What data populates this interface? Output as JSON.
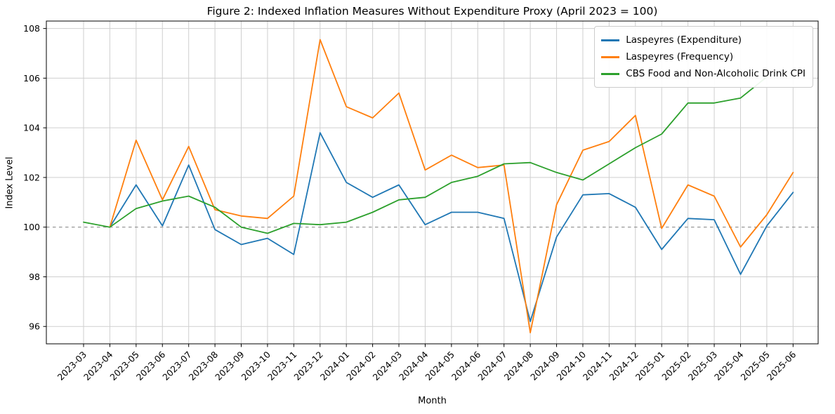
{
  "chart_data": {
    "type": "line",
    "title": "Figure 2: Indexed Inflation Measures Without Expenditure Proxy (April 2023 = 100)",
    "xlabel": "Month",
    "ylabel": "Index Level",
    "x_categories": [
      "2023-03",
      "2023-04",
      "2023-05",
      "2023-06",
      "2023-07",
      "2023-08",
      "2023-09",
      "2023-10",
      "2023-11",
      "2023-12",
      "2024-01",
      "2024-02",
      "2024-03",
      "2024-04",
      "2024-05",
      "2024-06",
      "2024-07",
      "2024-08",
      "2024-09",
      "2024-10",
      "2024-11",
      "2024-12",
      "2025-01",
      "2025-02",
      "2025-03",
      "2025-04",
      "2025-05",
      "2025-06"
    ],
    "yticks": [
      96,
      98,
      100,
      102,
      104,
      106,
      108
    ],
    "ylim": [
      95.3,
      108.3
    ],
    "grid": true,
    "legend_position": "upper right",
    "reference_line": {
      "y": 100,
      "style": "dashed",
      "color": "#8c8c8c"
    },
    "series": [
      {
        "name": "Laspeyres (Expenditure)",
        "color": "#1f77b4",
        "values": [
          null,
          100.0,
          101.7,
          100.05,
          102.5,
          99.9,
          99.3,
          99.55,
          98.9,
          103.8,
          101.8,
          101.2,
          101.7,
          100.1,
          100.6,
          100.6,
          100.35,
          96.2,
          99.6,
          101.3,
          101.35,
          100.8,
          99.1,
          100.35,
          100.3,
          98.1,
          100.05,
          101.4
        ]
      },
      {
        "name": "Laspeyres (Frequency)",
        "color": "#ff7f0e",
        "values": [
          null,
          100.0,
          103.5,
          101.1,
          103.25,
          100.7,
          100.45,
          100.35,
          101.25,
          107.55,
          104.85,
          104.4,
          105.4,
          102.3,
          102.9,
          102.4,
          102.5,
          95.75,
          100.9,
          103.1,
          103.45,
          104.5,
          99.95,
          101.7,
          101.25,
          99.2,
          100.5,
          102.2
        ]
      },
      {
        "name": "CBS Food and Non-Alcoholic Drink CPI",
        "color": "#2ca02c",
        "values": [
          100.2,
          100.0,
          100.75,
          101.05,
          101.25,
          100.8,
          100.0,
          99.75,
          100.15,
          100.1,
          100.2,
          100.6,
          101.1,
          101.2,
          101.8,
          102.05,
          102.55,
          102.6,
          102.2,
          101.9,
          102.55,
          103.2,
          103.75,
          105.0,
          105.0,
          105.2,
          106.05,
          null
        ]
      }
    ]
  }
}
